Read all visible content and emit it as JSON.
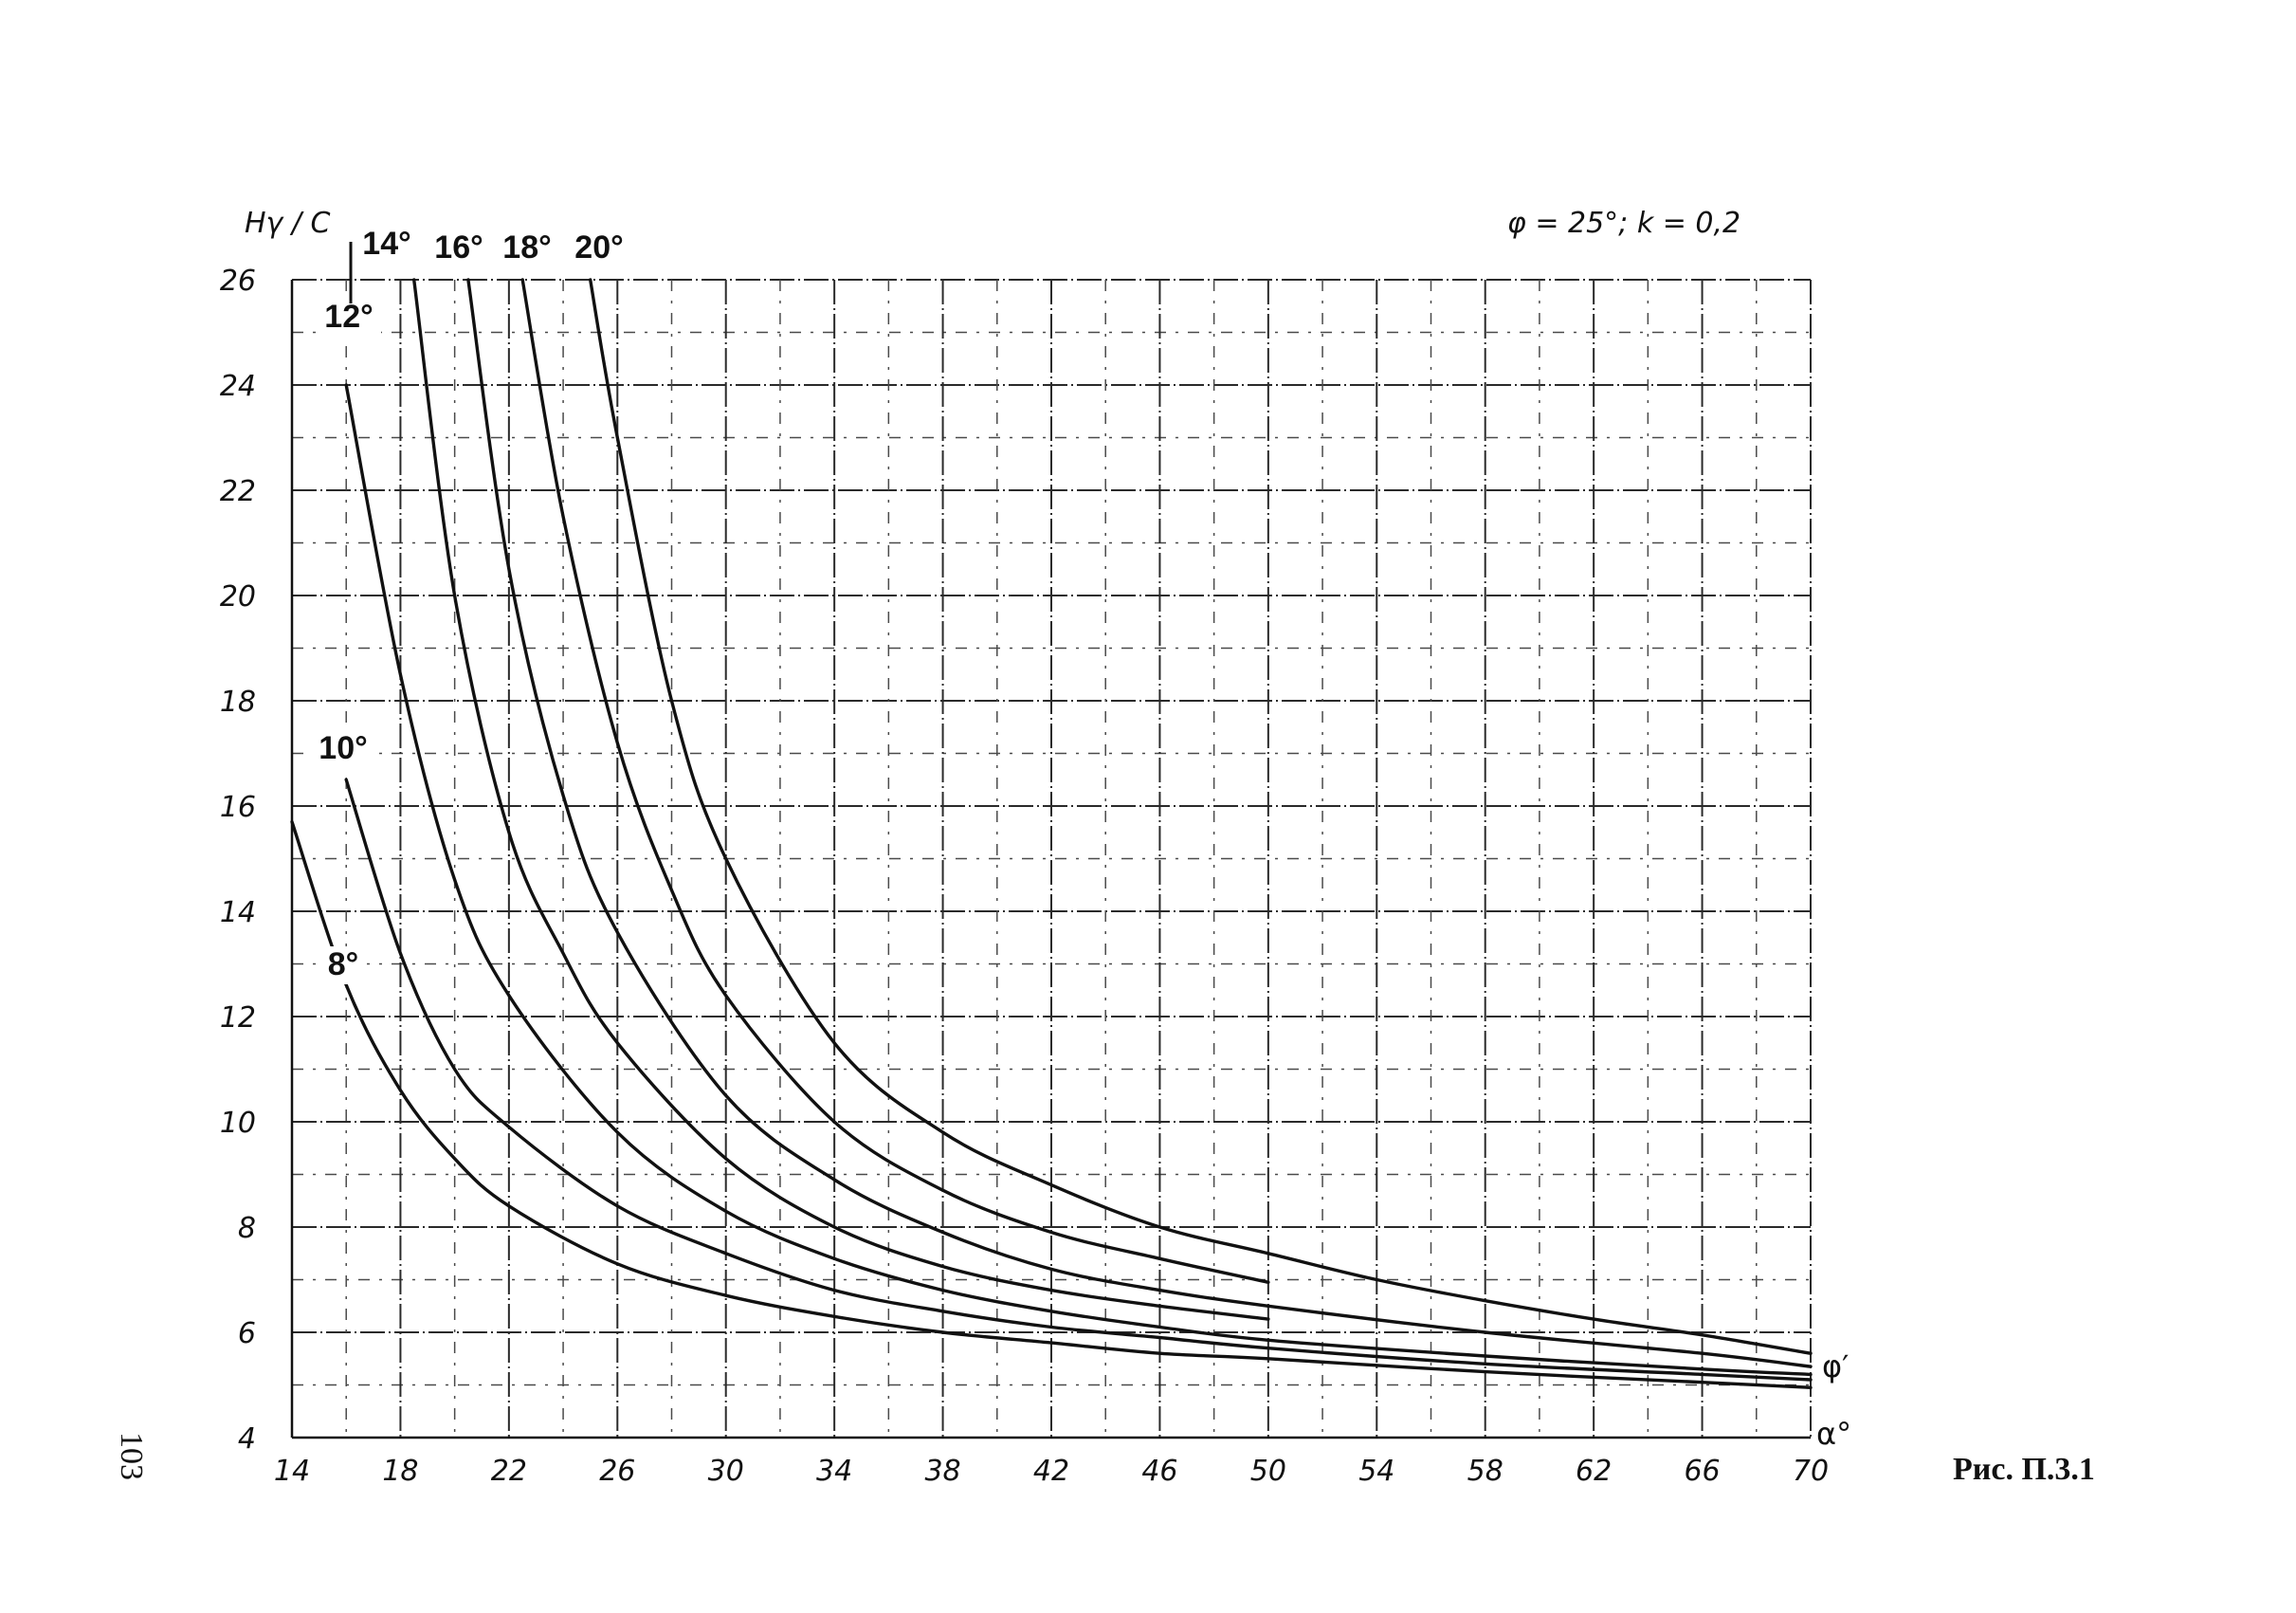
{
  "page_number": "103",
  "figure_caption": "Рис. П.3.1",
  "chart_data": {
    "type": "line",
    "title": "φ = 25°; k = 0,2",
    "ylabel": "Hγ / C",
    "xlabel": "α°",
    "right_axis_label": "φ′",
    "xlim": [
      14,
      70
    ],
    "ylim": [
      4,
      26
    ],
    "x_ticks": [
      14,
      18,
      22,
      26,
      30,
      34,
      38,
      42,
      46,
      50,
      54,
      58,
      62,
      66,
      70
    ],
    "y_ticks": [
      4,
      6,
      8,
      10,
      12,
      14,
      16,
      18,
      20,
      22,
      24,
      26
    ],
    "grid": true,
    "series": [
      {
        "name": "8°",
        "x": [
          14,
          16,
          18,
          20,
          22,
          26,
          30,
          34,
          38,
          42,
          46,
          50,
          58,
          66,
          70
        ],
        "y": [
          15.7,
          12.6,
          10.6,
          9.3,
          8.4,
          7.3,
          6.7,
          6.3,
          6.0,
          5.8,
          5.6,
          5.5,
          5.25,
          5.05,
          4.95
        ]
      },
      {
        "name": "10°",
        "x": [
          16,
          18,
          20,
          22,
          26,
          30,
          34,
          38,
          42,
          46,
          50,
          58,
          66,
          70
        ],
        "y": [
          16.5,
          13.2,
          11.0,
          9.9,
          8.4,
          7.5,
          6.8,
          6.4,
          6.1,
          5.9,
          5.7,
          5.4,
          5.2,
          5.1
        ]
      },
      {
        "name": "12°",
        "x": [
          16,
          18,
          20,
          22,
          26,
          30,
          34,
          38,
          42,
          46,
          50,
          58,
          66,
          70
        ],
        "y": [
          24.0,
          18.5,
          14.6,
          12.4,
          9.8,
          8.3,
          7.4,
          6.8,
          6.4,
          6.1,
          5.85,
          5.55,
          5.3,
          5.2
        ]
      },
      {
        "name": "14°",
        "x": [
          18.5,
          20,
          22,
          24,
          26,
          30,
          34,
          38,
          42,
          46,
          50
        ],
        "y": [
          26.0,
          20.0,
          15.5,
          13.2,
          11.5,
          9.3,
          8.0,
          7.25,
          6.8,
          6.5,
          6.25
        ]
      },
      {
        "name": "16°",
        "x": [
          20.5,
          22,
          24,
          26,
          30,
          34,
          38,
          42,
          46,
          50,
          58,
          66,
          70
        ],
        "y": [
          26.0,
          20.5,
          16.2,
          13.6,
          10.5,
          8.9,
          7.9,
          7.2,
          6.8,
          6.5,
          6.0,
          5.6,
          5.35
        ]
      },
      {
        "name": "18°",
        "x": [
          22.5,
          24,
          26,
          28,
          30,
          34,
          38,
          42,
          46,
          50
        ],
        "y": [
          26.0,
          21.5,
          17.2,
          14.4,
          12.4,
          10.0,
          8.7,
          7.9,
          7.4,
          6.95
        ]
      },
      {
        "name": "20°",
        "x": [
          25,
          26,
          28,
          30,
          34,
          38,
          42,
          46,
          50,
          54,
          58,
          62,
          66,
          70
        ],
        "y": [
          26.0,
          23.0,
          18.0,
          15.0,
          11.5,
          9.8,
          8.8,
          8.0,
          7.5,
          7.0,
          6.6,
          6.25,
          5.95,
          5.6
        ]
      }
    ]
  }
}
